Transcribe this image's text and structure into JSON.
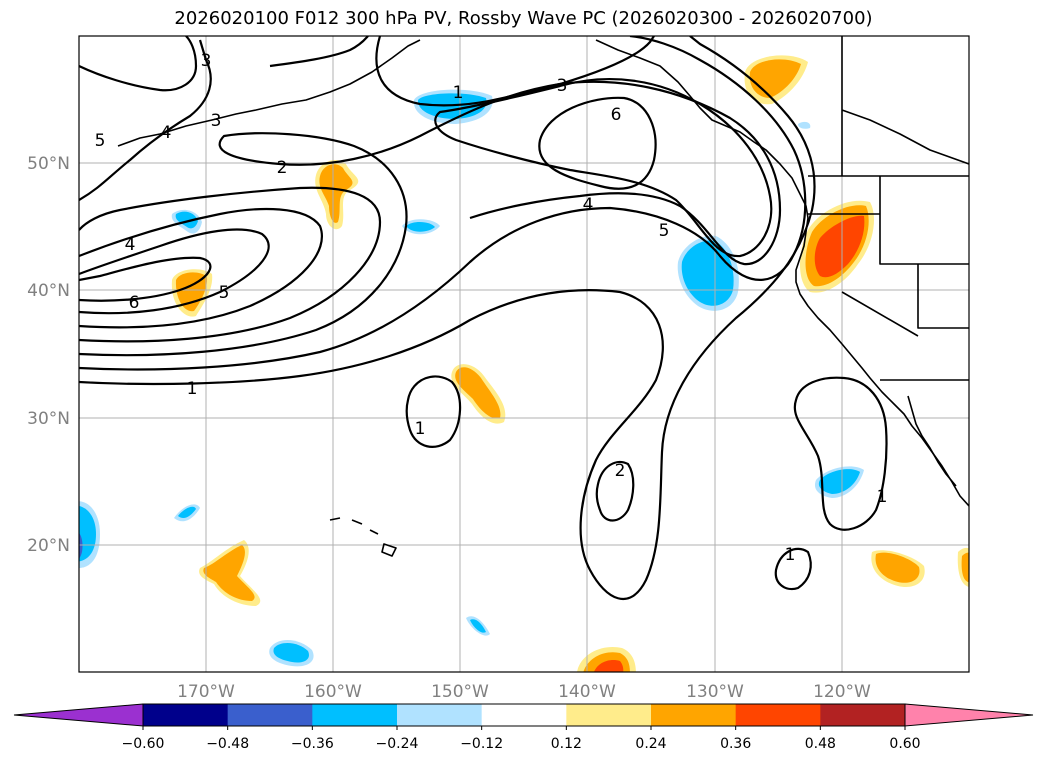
{
  "title": "2026020100 F012 300 hPa PV, Rossby Wave PC (2026020300 - 2026020700)",
  "longitude_labels": [
    "170°W",
    "160°W",
    "150°W",
    "140°W",
    "130°W",
    "120°W"
  ],
  "latitude_labels": [
    "50°N",
    "40°N",
    "30°N",
    "20°N"
  ],
  "contour_labels": [
    "3",
    "5",
    "4",
    "3",
    "2",
    "4",
    "6",
    "5",
    "1",
    "1",
    "3",
    "6",
    "4",
    "5",
    "1",
    "2",
    "1",
    "1"
  ],
  "colorbar": {
    "tick_labels": [
      "−0.60",
      "−0.48",
      "−0.36",
      "−0.24",
      "−0.12",
      "0.12",
      "0.24",
      "0.36",
      "0.48",
      "0.60"
    ],
    "colors": [
      "#9b30d0",
      "#00008b",
      "#3a5fcd",
      "#00bfff",
      "#b0e2ff",
      "#ffffff",
      "#ffec8b",
      "#ffa500",
      "#ff4500",
      "#b22222",
      "#ff82ab"
    ]
  }
}
